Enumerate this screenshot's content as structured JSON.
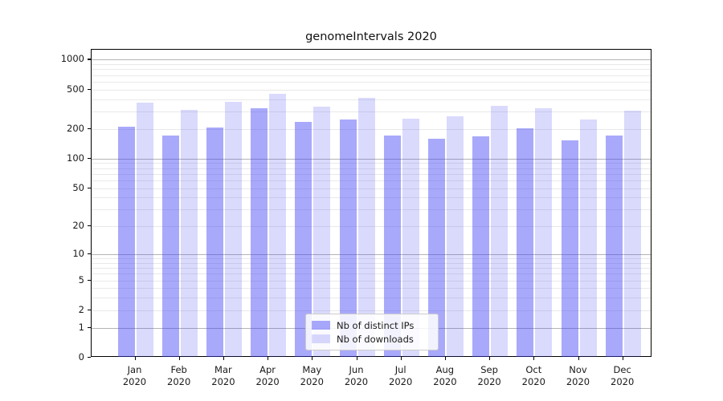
{
  "chart_data": {
    "type": "bar",
    "title": "genomeIntervals 2020",
    "categories": [
      "Jan",
      "Feb",
      "Mar",
      "Apr",
      "May",
      "Jun",
      "Jul",
      "Aug",
      "Sep",
      "Oct",
      "Nov",
      "Dec"
    ],
    "xtick_year": "2020",
    "series": [
      {
        "name": "Nb of distinct IPs",
        "color": "rgba(60,60,245,0.44)",
        "values": [
          210,
          170,
          208,
          324,
          235,
          247,
          171,
          160,
          167,
          203,
          153,
          170
        ]
      },
      {
        "name": "Nb of downloads",
        "color": "rgba(60,60,245,0.19)",
        "values": [
          368,
          309,
          376,
          451,
          335,
          413,
          254,
          266,
          343,
          322,
          251,
          306
        ]
      }
    ],
    "yaxis": {
      "scale": "symlog (y ~ log10(1+v))",
      "ticks": [
        0,
        1,
        2,
        5,
        10,
        20,
        50,
        100,
        200,
        500,
        1000
      ],
      "ylim": [
        0,
        1260
      ],
      "grid": true
    },
    "xlabel": "",
    "ylabel": "",
    "legend_position": "inside-bottom-center"
  },
  "colors": {
    "major_grid": "#b4b4b4",
    "minor_grid": "#e9e9e9",
    "spine": "#000000",
    "text": "#1a1a1a",
    "background": "#ffffff"
  }
}
